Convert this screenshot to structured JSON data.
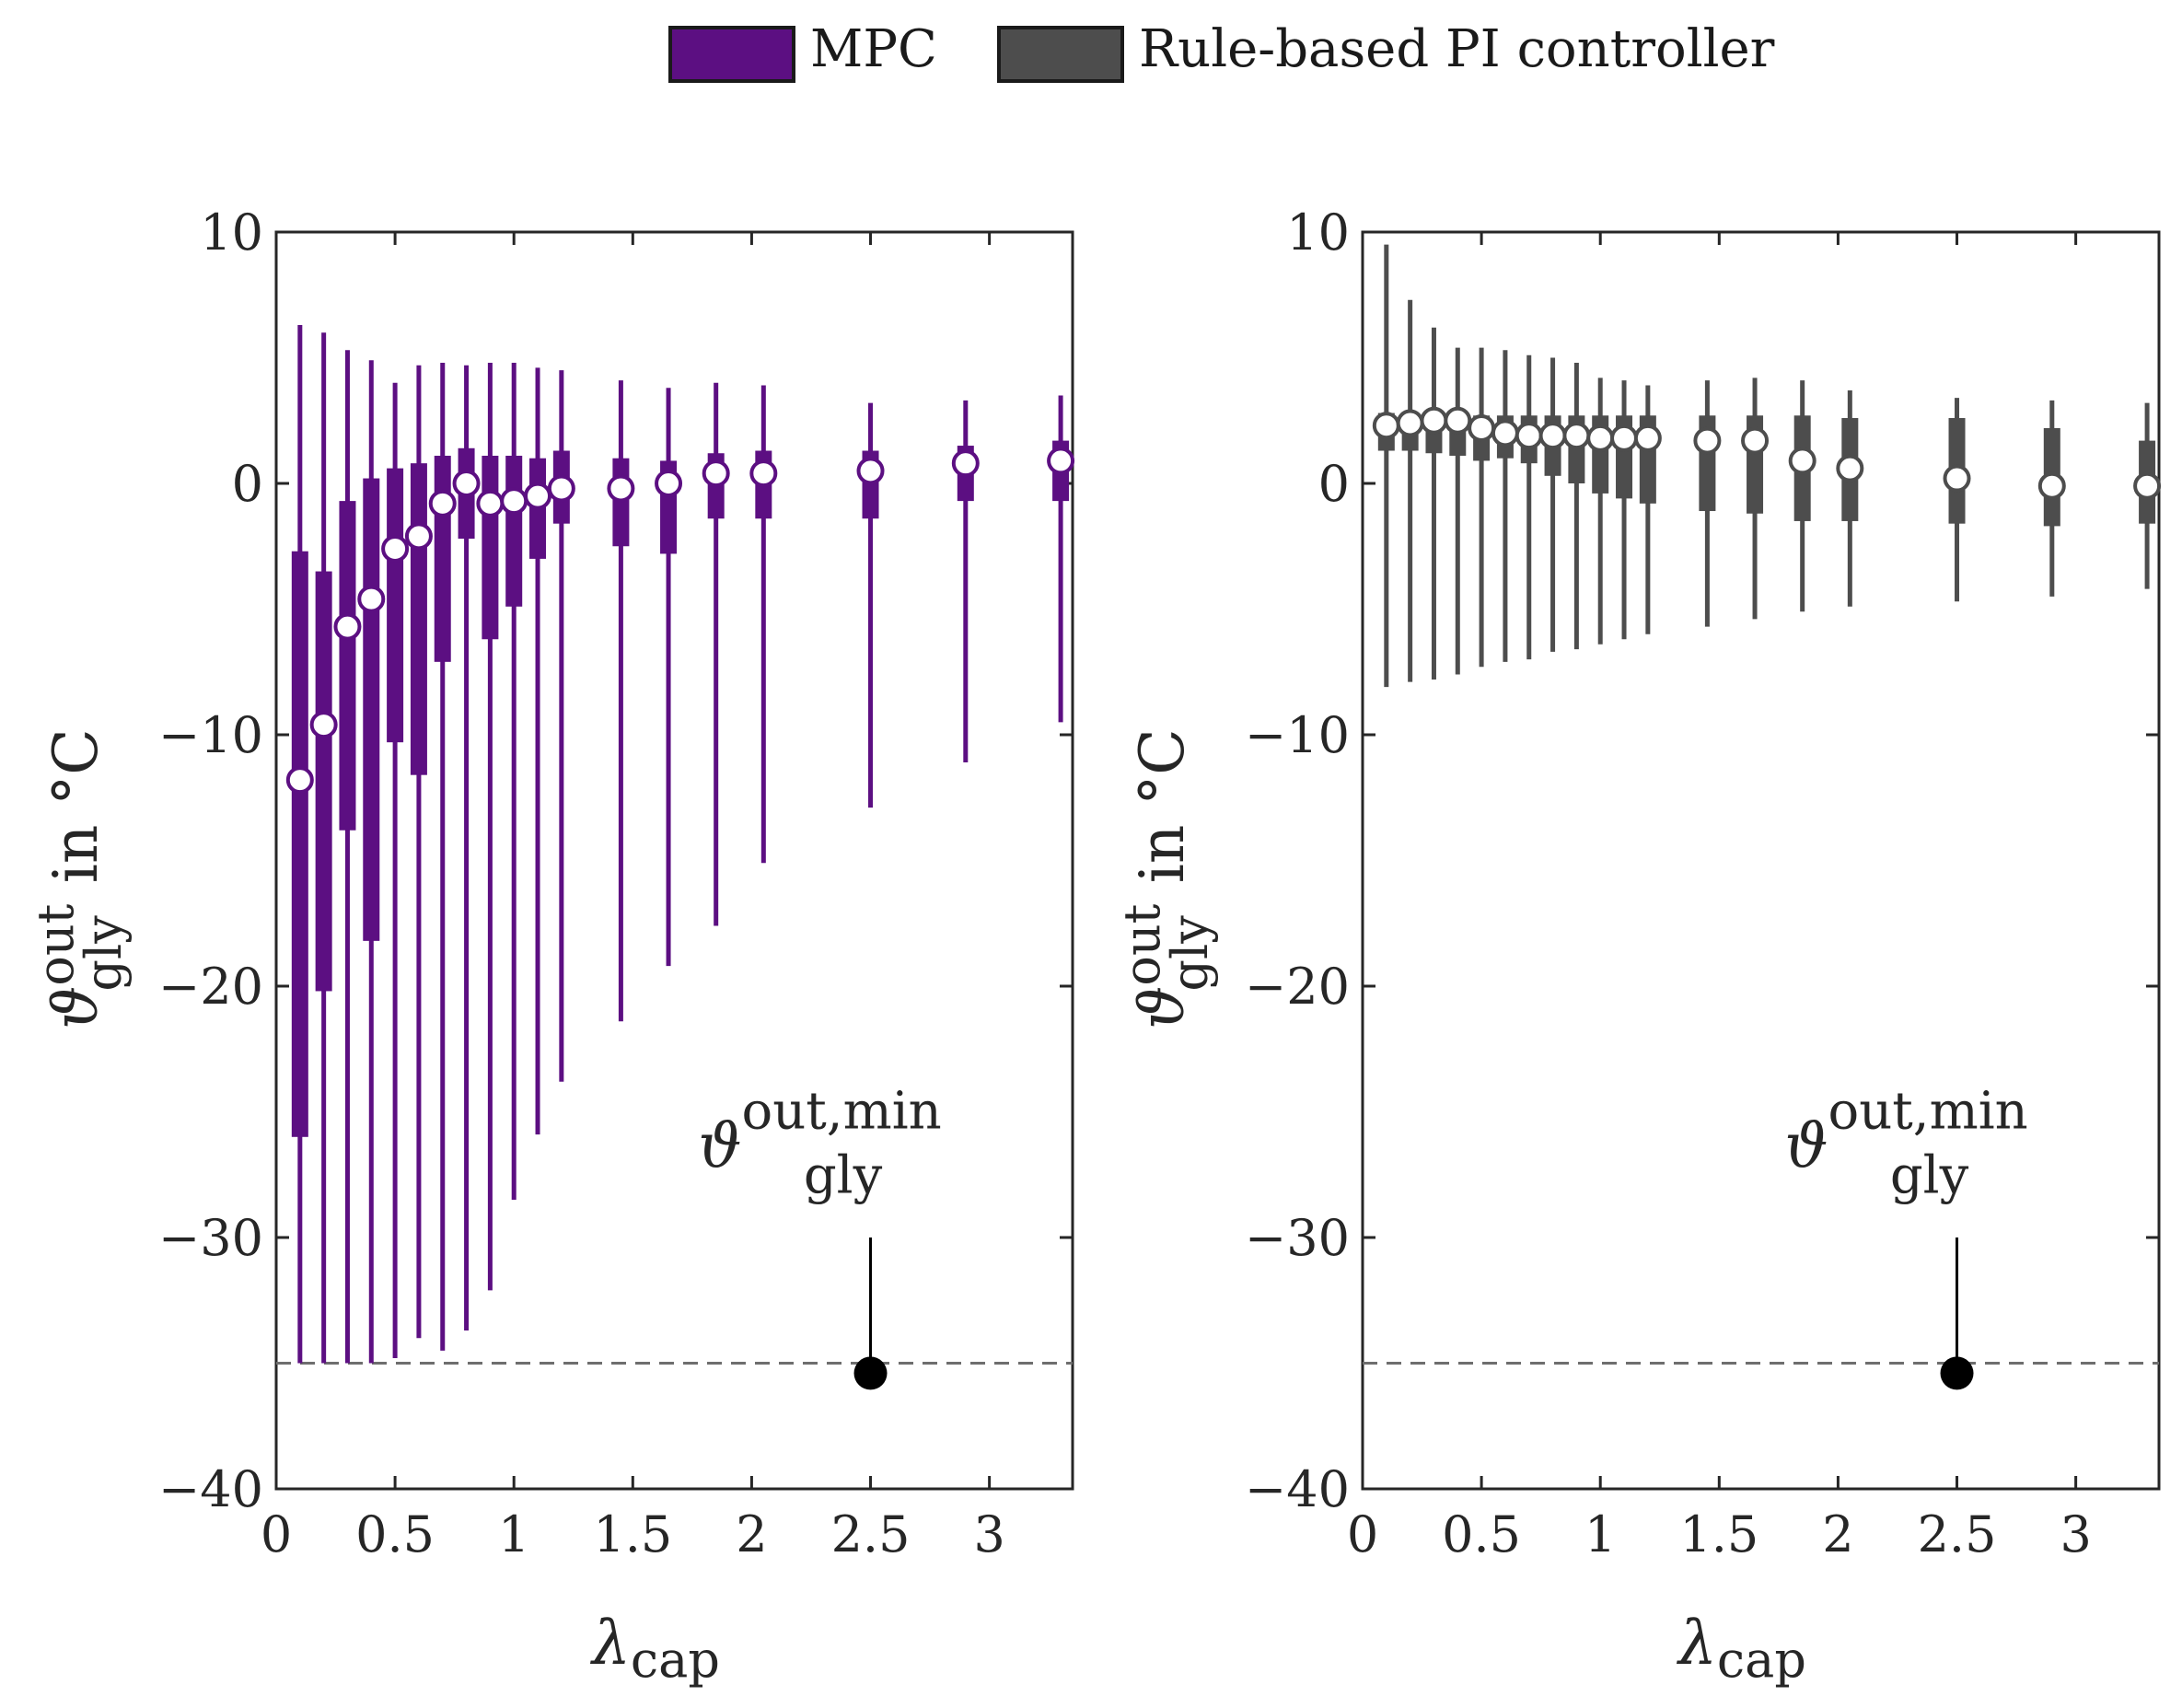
{
  "legend": {
    "items": [
      {
        "label": "MPC",
        "color": "#5c0f82"
      },
      {
        "label": "Rule-based PI controller",
        "color": "#4d4d4d"
      }
    ]
  },
  "annotation": {
    "symbol": "ϑ",
    "superscript": "out,min",
    "subscript": "gly",
    "x": 2.5,
    "y": -35.4
  },
  "chart_data": [
    {
      "type": "box",
      "name": "MPC",
      "color": "#5c0f82",
      "xlabel": {
        "symbol": "λ",
        "sub": "cap"
      },
      "ylabel": {
        "symbol": "ϑ",
        "sup": "out",
        "sub": "gly",
        "suffix": "in °C"
      },
      "xlim": [
        0,
        3.35
      ],
      "ylim": [
        -40,
        10
      ],
      "xticks": [
        "0",
        "0.5",
        "1",
        "1.5",
        "2",
        "2.5",
        "3"
      ],
      "xtick_values": [
        0,
        0.5,
        1,
        1.5,
        2,
        2.5,
        3
      ],
      "yticks": [
        "10",
        "0",
        "−10",
        "−20",
        "−30",
        "−40"
      ],
      "ytick_values": [
        10,
        0,
        -10,
        -20,
        -30,
        -40
      ],
      "reference_line": -35,
      "boxes": [
        {
          "x": 0.1,
          "median": -11.8,
          "q1": -26.0,
          "q3": -2.7,
          "min": -35.0,
          "max": 6.3
        },
        {
          "x": 0.2,
          "median": -9.6,
          "q1": -20.2,
          "q3": -3.5,
          "min": -35.0,
          "max": 6.0
        },
        {
          "x": 0.3,
          "median": -5.7,
          "q1": -13.8,
          "q3": -0.7,
          "min": -35.0,
          "max": 5.3
        },
        {
          "x": 0.4,
          "median": -4.6,
          "q1": -18.2,
          "q3": 0.2,
          "min": -35.0,
          "max": 4.9
        },
        {
          "x": 0.5,
          "median": -2.6,
          "q1": -10.3,
          "q3": 0.6,
          "min": -34.8,
          "max": 4.0
        },
        {
          "x": 0.6,
          "median": -2.1,
          "q1": -11.6,
          "q3": 0.8,
          "min": -34.0,
          "max": 4.7
        },
        {
          "x": 0.7,
          "median": -0.8,
          "q1": -7.1,
          "q3": 1.1,
          "min": -34.5,
          "max": 4.8
        },
        {
          "x": 0.8,
          "median": 0.0,
          "q1": -2.2,
          "q3": 1.4,
          "min": -33.7,
          "max": 4.7
        },
        {
          "x": 0.9,
          "median": -0.8,
          "q1": -6.2,
          "q3": 1.1,
          "min": -32.1,
          "max": 4.8
        },
        {
          "x": 1.0,
          "median": -0.7,
          "q1": -4.9,
          "q3": 1.1,
          "min": -28.5,
          "max": 4.8
        },
        {
          "x": 1.1,
          "median": -0.5,
          "q1": -3.0,
          "q3": 1.0,
          "min": -25.9,
          "max": 4.6
        },
        {
          "x": 1.2,
          "median": -0.2,
          "q1": -1.6,
          "q3": 1.3,
          "min": -23.8,
          "max": 4.5
        },
        {
          "x": 1.45,
          "median": -0.2,
          "q1": -2.5,
          "q3": 1.0,
          "min": -21.4,
          "max": 4.1
        },
        {
          "x": 1.65,
          "median": 0.0,
          "q1": -2.8,
          "q3": 0.9,
          "min": -19.2,
          "max": 3.8
        },
        {
          "x": 1.85,
          "median": 0.4,
          "q1": -1.4,
          "q3": 1.2,
          "min": -17.6,
          "max": 4.0
        },
        {
          "x": 2.05,
          "median": 0.4,
          "q1": -1.4,
          "q3": 1.3,
          "min": -15.1,
          "max": 3.9
        },
        {
          "x": 2.5,
          "median": 0.5,
          "q1": -1.4,
          "q3": 1.3,
          "min": -12.9,
          "max": 3.2
        },
        {
          "x": 2.9,
          "median": 0.8,
          "q1": -0.7,
          "q3": 1.5,
          "min": -11.1,
          "max": 3.3
        },
        {
          "x": 3.3,
          "median": 0.9,
          "q1": -0.7,
          "q3": 1.7,
          "min": -9.5,
          "max": 3.5
        }
      ]
    },
    {
      "type": "box",
      "name": "Rule-based PI controller",
      "color": "#4d4d4d",
      "xlabel": {
        "symbol": "λ",
        "sub": "cap"
      },
      "ylabel": {
        "symbol": "ϑ",
        "sup": "out",
        "sub": "gly",
        "suffix": "in °C"
      },
      "xlim": [
        0,
        3.35
      ],
      "ylim": [
        -40,
        10
      ],
      "xticks": [
        "0",
        "0.5",
        "1",
        "1.5",
        "2",
        "2.5",
        "3"
      ],
      "xtick_values": [
        0,
        0.5,
        1,
        1.5,
        2,
        2.5,
        3
      ],
      "yticks": [
        "10",
        "0",
        "−10",
        "−20",
        "−30",
        "−40"
      ],
      "ytick_values": [
        10,
        0,
        -10,
        -20,
        -30,
        -40
      ],
      "reference_line": -35,
      "boxes": [
        {
          "x": 0.1,
          "median": 2.3,
          "q1": 1.3,
          "q3": 2.8,
          "min": -8.1,
          "max": 9.5
        },
        {
          "x": 0.2,
          "median": 2.4,
          "q1": 1.3,
          "q3": 2.8,
          "min": -7.9,
          "max": 7.3
        },
        {
          "x": 0.3,
          "median": 2.5,
          "q1": 1.2,
          "q3": 2.8,
          "min": -7.8,
          "max": 6.2
        },
        {
          "x": 0.4,
          "median": 2.5,
          "q1": 1.1,
          "q3": 2.8,
          "min": -7.6,
          "max": 5.4
        },
        {
          "x": 0.5,
          "median": 2.2,
          "q1": 0.9,
          "q3": 2.7,
          "min": -7.3,
          "max": 5.4
        },
        {
          "x": 0.6,
          "median": 2.0,
          "q1": 1.0,
          "q3": 2.7,
          "min": -7.1,
          "max": 5.3
        },
        {
          "x": 0.7,
          "median": 1.9,
          "q1": 0.8,
          "q3": 2.7,
          "min": -7.0,
          "max": 5.1
        },
        {
          "x": 0.8,
          "median": 1.9,
          "q1": 0.3,
          "q3": 2.7,
          "min": -6.7,
          "max": 5.0
        },
        {
          "x": 0.9,
          "median": 1.9,
          "q1": 0.0,
          "q3": 2.7,
          "min": -6.6,
          "max": 4.8
        },
        {
          "x": 1.0,
          "median": 1.8,
          "q1": -0.4,
          "q3": 2.7,
          "min": -6.4,
          "max": 4.2
        },
        {
          "x": 1.1,
          "median": 1.8,
          "q1": -0.6,
          "q3": 2.7,
          "min": -6.2,
          "max": 4.1
        },
        {
          "x": 1.2,
          "median": 1.8,
          "q1": -0.8,
          "q3": 2.7,
          "min": -6.0,
          "max": 3.9
        },
        {
          "x": 1.45,
          "median": 1.7,
          "q1": -1.1,
          "q3": 2.7,
          "min": -5.7,
          "max": 4.1
        },
        {
          "x": 1.65,
          "median": 1.7,
          "q1": -1.2,
          "q3": 2.7,
          "min": -5.4,
          "max": 4.2
        },
        {
          "x": 1.85,
          "median": 0.9,
          "q1": -1.5,
          "q3": 2.7,
          "min": -5.1,
          "max": 4.1
        },
        {
          "x": 2.05,
          "median": 0.6,
          "q1": -1.5,
          "q3": 2.6,
          "min": -4.9,
          "max": 3.7
        },
        {
          "x": 2.5,
          "median": 0.2,
          "q1": -1.6,
          "q3": 2.6,
          "min": -4.7,
          "max": 3.4
        },
        {
          "x": 2.9,
          "median": -0.1,
          "q1": -1.7,
          "q3": 2.2,
          "min": -4.5,
          "max": 3.3
        },
        {
          "x": 3.3,
          "median": -0.1,
          "q1": -1.6,
          "q3": 1.7,
          "min": -4.2,
          "max": 3.2
        }
      ]
    }
  ]
}
